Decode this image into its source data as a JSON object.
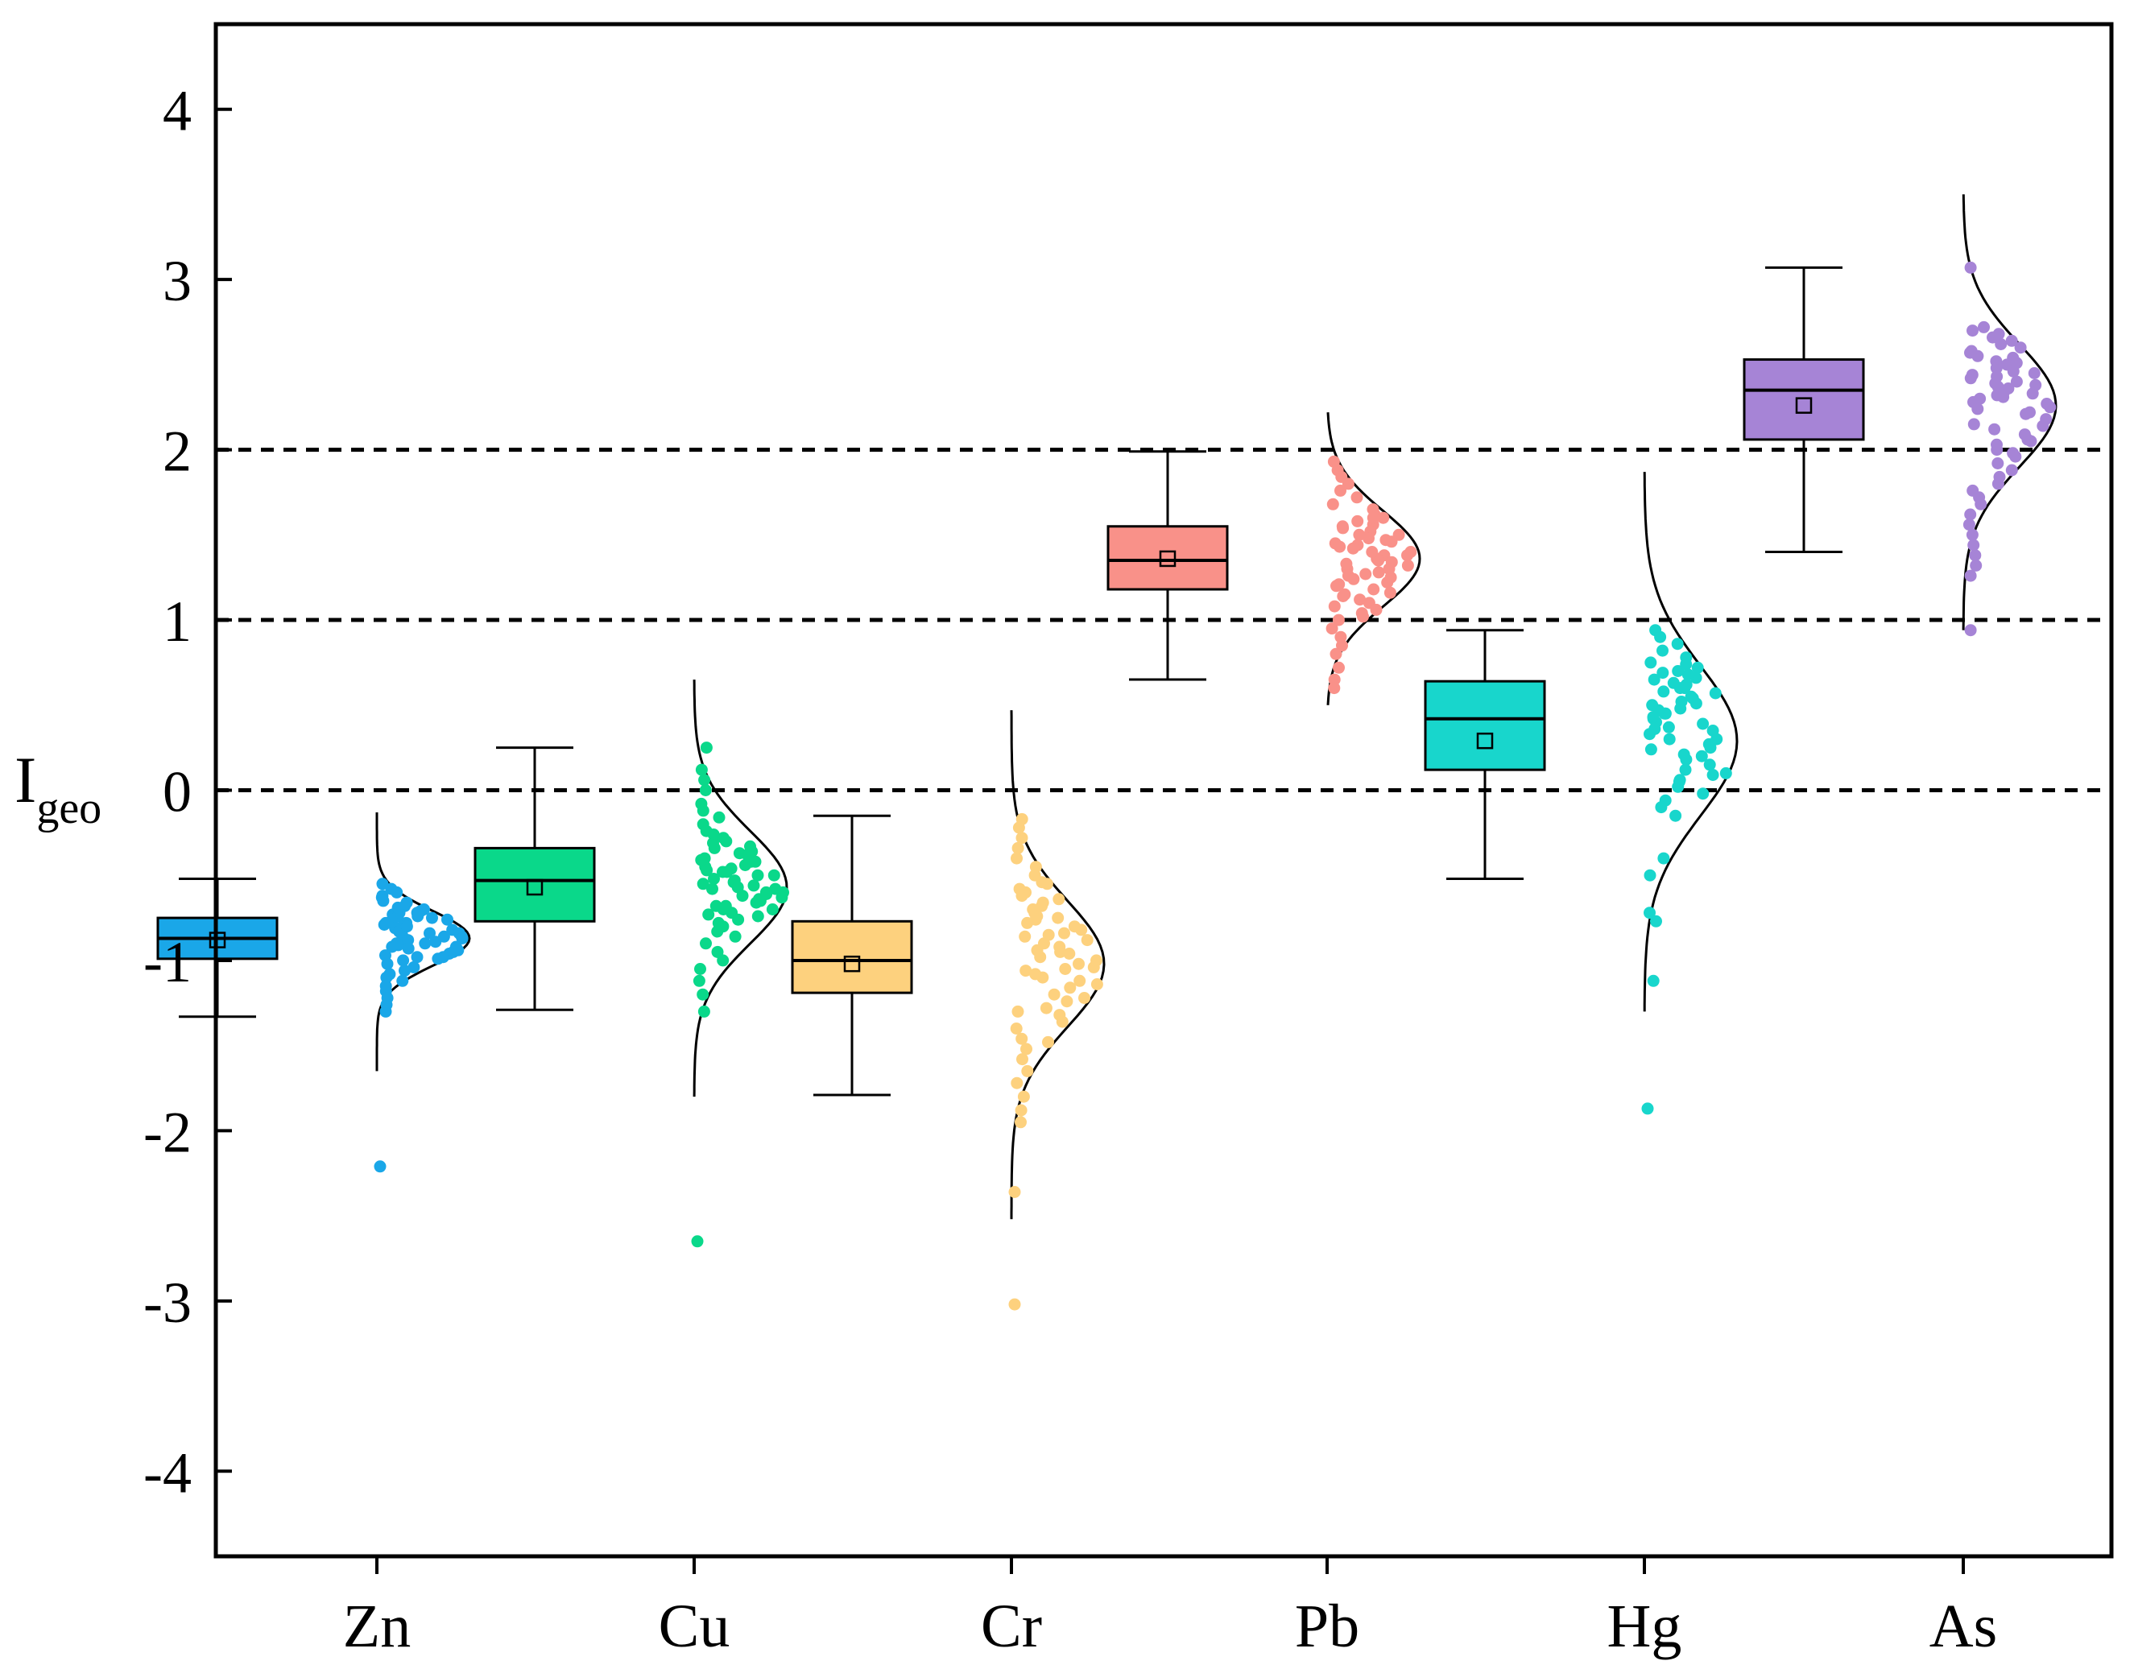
{
  "chart_data": {
    "type": "box-scatter-distribution",
    "title": "",
    "xlabel": "",
    "ylabel": "I",
    "ylabel_sub": "geo",
    "ylim": [
      -4.5,
      4.5
    ],
    "yticks": [
      "-4",
      "-3",
      "-2",
      "-1",
      "0",
      "1",
      "2",
      "3",
      "4"
    ],
    "reference_lines": [
      0,
      1,
      2
    ],
    "categories": [
      {
        "name": "Zn",
        "color": "#1aa7e8",
        "whisker_low": -1.33,
        "q1": -0.99,
        "median": -0.87,
        "q3": -0.75,
        "whisker_high": -0.52,
        "mean": -0.88,
        "dist_mean": -0.87,
        "dist_sd": 0.16,
        "dist_min": -1.65,
        "dist_max": -0.13,
        "outliers": [
          -2.21
        ],
        "points": [
          -0.55,
          -0.58,
          -0.6,
          -0.62,
          -0.63,
          -0.65,
          -0.66,
          -0.68,
          -0.7,
          -0.71,
          -0.72,
          -0.73,
          -0.74,
          -0.75,
          -0.76,
          -0.77,
          -0.78,
          -0.79,
          -0.8,
          -0.81,
          -0.82,
          -0.83,
          -0.84,
          -0.85,
          -0.86,
          -0.87,
          -0.88,
          -0.89,
          -0.9,
          -0.91,
          -0.92,
          -0.93,
          -0.94,
          -0.95,
          -0.96,
          -0.97,
          -0.98,
          -0.99,
          -1.0,
          -1.02,
          -1.04,
          -1.06,
          -1.08,
          -1.1,
          -1.12,
          -1.15,
          -1.18,
          -1.22,
          -1.26,
          -1.3,
          -0.69,
          -0.74,
          -0.8,
          -0.86,
          -0.92,
          -0.98,
          -0.78,
          -0.84,
          -0.9,
          -0.72
        ]
      },
      {
        "name": "Cu",
        "color": "#0ad88a",
        "whisker_low": -1.29,
        "q1": -0.77,
        "median": -0.53,
        "q3": -0.34,
        "whisker_high": 0.25,
        "mean": -0.57,
        "dist_mean": -0.57,
        "dist_sd": 0.33,
        "dist_min": -1.8,
        "dist_max": 0.65,
        "outliers": [
          -2.65
        ],
        "points": [
          0.25,
          0.12,
          0.06,
          0.0,
          -0.08,
          -0.12,
          -0.16,
          -0.2,
          -0.24,
          -0.28,
          -0.31,
          -0.34,
          -0.37,
          -0.4,
          -0.42,
          -0.44,
          -0.46,
          -0.48,
          -0.5,
          -0.52,
          -0.54,
          -0.56,
          -0.58,
          -0.6,
          -0.62,
          -0.64,
          -0.66,
          -0.68,
          -0.7,
          -0.72,
          -0.74,
          -0.76,
          -0.78,
          -0.8,
          -0.83,
          -0.86,
          -0.9,
          -0.95,
          -1.0,
          -1.05,
          -1.12,
          -1.2,
          -1.3,
          -0.3,
          -0.38,
          -0.45,
          -0.5,
          -0.55,
          -0.6,
          -0.65,
          -0.7,
          -0.42,
          -0.48,
          -0.58,
          -0.36,
          -0.63,
          -0.68,
          -0.53,
          -0.47,
          -0.73,
          -0.26,
          -0.33,
          -0.41,
          -0.57,
          -0.61
        ]
      },
      {
        "name": "Cr",
        "color": "#fdd17e",
        "whisker_low": -1.79,
        "q1": -1.19,
        "median": -1.0,
        "q3": -0.77,
        "whisker_high": -0.15,
        "mean": -1.02,
        "dist_mean": -1.02,
        "dist_sd": 0.37,
        "dist_min": -2.52,
        "dist_max": 0.47,
        "outliers": [
          -3.02,
          -2.36
        ],
        "points": [
          -0.17,
          -0.22,
          -0.28,
          -0.34,
          -0.4,
          -0.45,
          -0.5,
          -0.55,
          -0.6,
          -0.64,
          -0.68,
          -0.72,
          -0.76,
          -0.8,
          -0.84,
          -0.88,
          -0.92,
          -0.96,
          -1.0,
          -1.04,
          -1.08,
          -1.12,
          -1.16,
          -1.2,
          -1.24,
          -1.28,
          -1.32,
          -1.36,
          -1.4,
          -1.46,
          -1.52,
          -1.58,
          -1.65,
          -1.72,
          -1.8,
          -1.88,
          -1.95,
          -0.58,
          -0.62,
          -0.7,
          -0.78,
          -0.86,
          -0.94,
          -1.02,
          -1.1,
          -0.66,
          -0.74,
          -0.82,
          -0.9,
          -0.98,
          -1.06,
          -1.14,
          -1.22,
          -1.3,
          -0.54,
          -1.48,
          -0.75,
          -0.85,
          -0.95,
          -1.05
        ]
      },
      {
        "name": "Pb",
        "color": "#f99189",
        "whisker_low": 0.65,
        "q1": 1.18,
        "median": 1.35,
        "q3": 1.55,
        "whisker_high": 1.99,
        "mean": 1.36,
        "dist_mean": 1.36,
        "dist_sd": 0.28,
        "dist_min": 0.5,
        "dist_max": 2.22,
        "outliers": [],
        "points": [
          1.93,
          1.88,
          1.84,
          1.8,
          1.76,
          1.72,
          1.68,
          1.65,
          1.62,
          1.6,
          1.58,
          1.56,
          1.54,
          1.52,
          1.5,
          1.48,
          1.46,
          1.44,
          1.42,
          1.4,
          1.38,
          1.36,
          1.34,
          1.32,
          1.3,
          1.28,
          1.26,
          1.24,
          1.22,
          1.2,
          1.18,
          1.16,
          1.14,
          1.12,
          1.1,
          1.08,
          1.06,
          1.04,
          1.02,
          1.0,
          0.95,
          0.9,
          0.85,
          0.8,
          0.72,
          0.65,
          0.6,
          1.45,
          1.5,
          1.35,
          1.3,
          1.25,
          1.55,
          1.6,
          1.4,
          1.33,
          1.27,
          1.47,
          1.43,
          1.38,
          1.15,
          1.21
        ]
      },
      {
        "name": "Hg",
        "color": "#18d6cc",
        "whisker_low": -0.52,
        "q1": 0.12,
        "median": 0.42,
        "q3": 0.64,
        "whisker_high": 0.94,
        "mean": 0.29,
        "dist_mean": 0.29,
        "dist_sd": 0.44,
        "dist_min": -1.3,
        "dist_max": 1.87,
        "outliers": [
          -1.87
        ],
        "points": [
          0.94,
          0.9,
          0.86,
          0.82,
          0.78,
          0.75,
          0.72,
          0.69,
          0.66,
          0.63,
          0.6,
          0.57,
          0.54,
          0.51,
          0.48,
          0.45,
          0.42,
          0.39,
          0.36,
          0.33,
          0.3,
          0.27,
          0.24,
          0.21,
          0.18,
          0.15,
          0.12,
          0.09,
          0.06,
          0.02,
          -0.02,
          -0.06,
          -0.1,
          -0.15,
          -0.4,
          -0.5,
          -0.72,
          -0.77,
          -1.12,
          0.7,
          0.65,
          0.6,
          0.55,
          0.5,
          0.45,
          0.4,
          0.35,
          0.3,
          0.25,
          0.2,
          0.62,
          0.58,
          0.52,
          0.47,
          0.43,
          0.37,
          0.68,
          0.74,
          0.1,
          0.05
        ]
      },
      {
        "name": "As",
        "color": "#a684d6",
        "whisker_low": 1.4,
        "q1": 2.06,
        "median": 2.35,
        "q3": 2.53,
        "whisker_high": 3.07,
        "mean": 2.26,
        "dist_mean": 2.26,
        "dist_sd": 0.36,
        "dist_min": 0.94,
        "dist_max": 3.5,
        "outliers": [],
        "points": [
          3.07,
          2.72,
          2.68,
          2.64,
          2.6,
          2.57,
          2.54,
          2.51,
          2.48,
          2.45,
          2.42,
          2.39,
          2.36,
          2.33,
          2.3,
          2.27,
          2.24,
          2.21,
          2.18,
          2.15,
          2.12,
          2.09,
          2.06,
          2.03,
          2.0,
          1.96,
          1.92,
          1.88,
          1.84,
          1.8,
          1.76,
          1.72,
          1.68,
          1.62,
          1.56,
          1.5,
          1.44,
          1.38,
          1.32,
          1.26,
          0.94,
          2.62,
          2.58,
          2.55,
          2.52,
          2.49,
          2.46,
          2.43,
          2.4,
          2.37,
          2.34,
          2.31,
          2.28,
          2.25,
          2.66,
          2.7,
          2.5,
          2.44,
          2.38,
          2.32,
          2.22,
          2.14,
          2.05,
          1.98
        ]
      }
    ]
  }
}
